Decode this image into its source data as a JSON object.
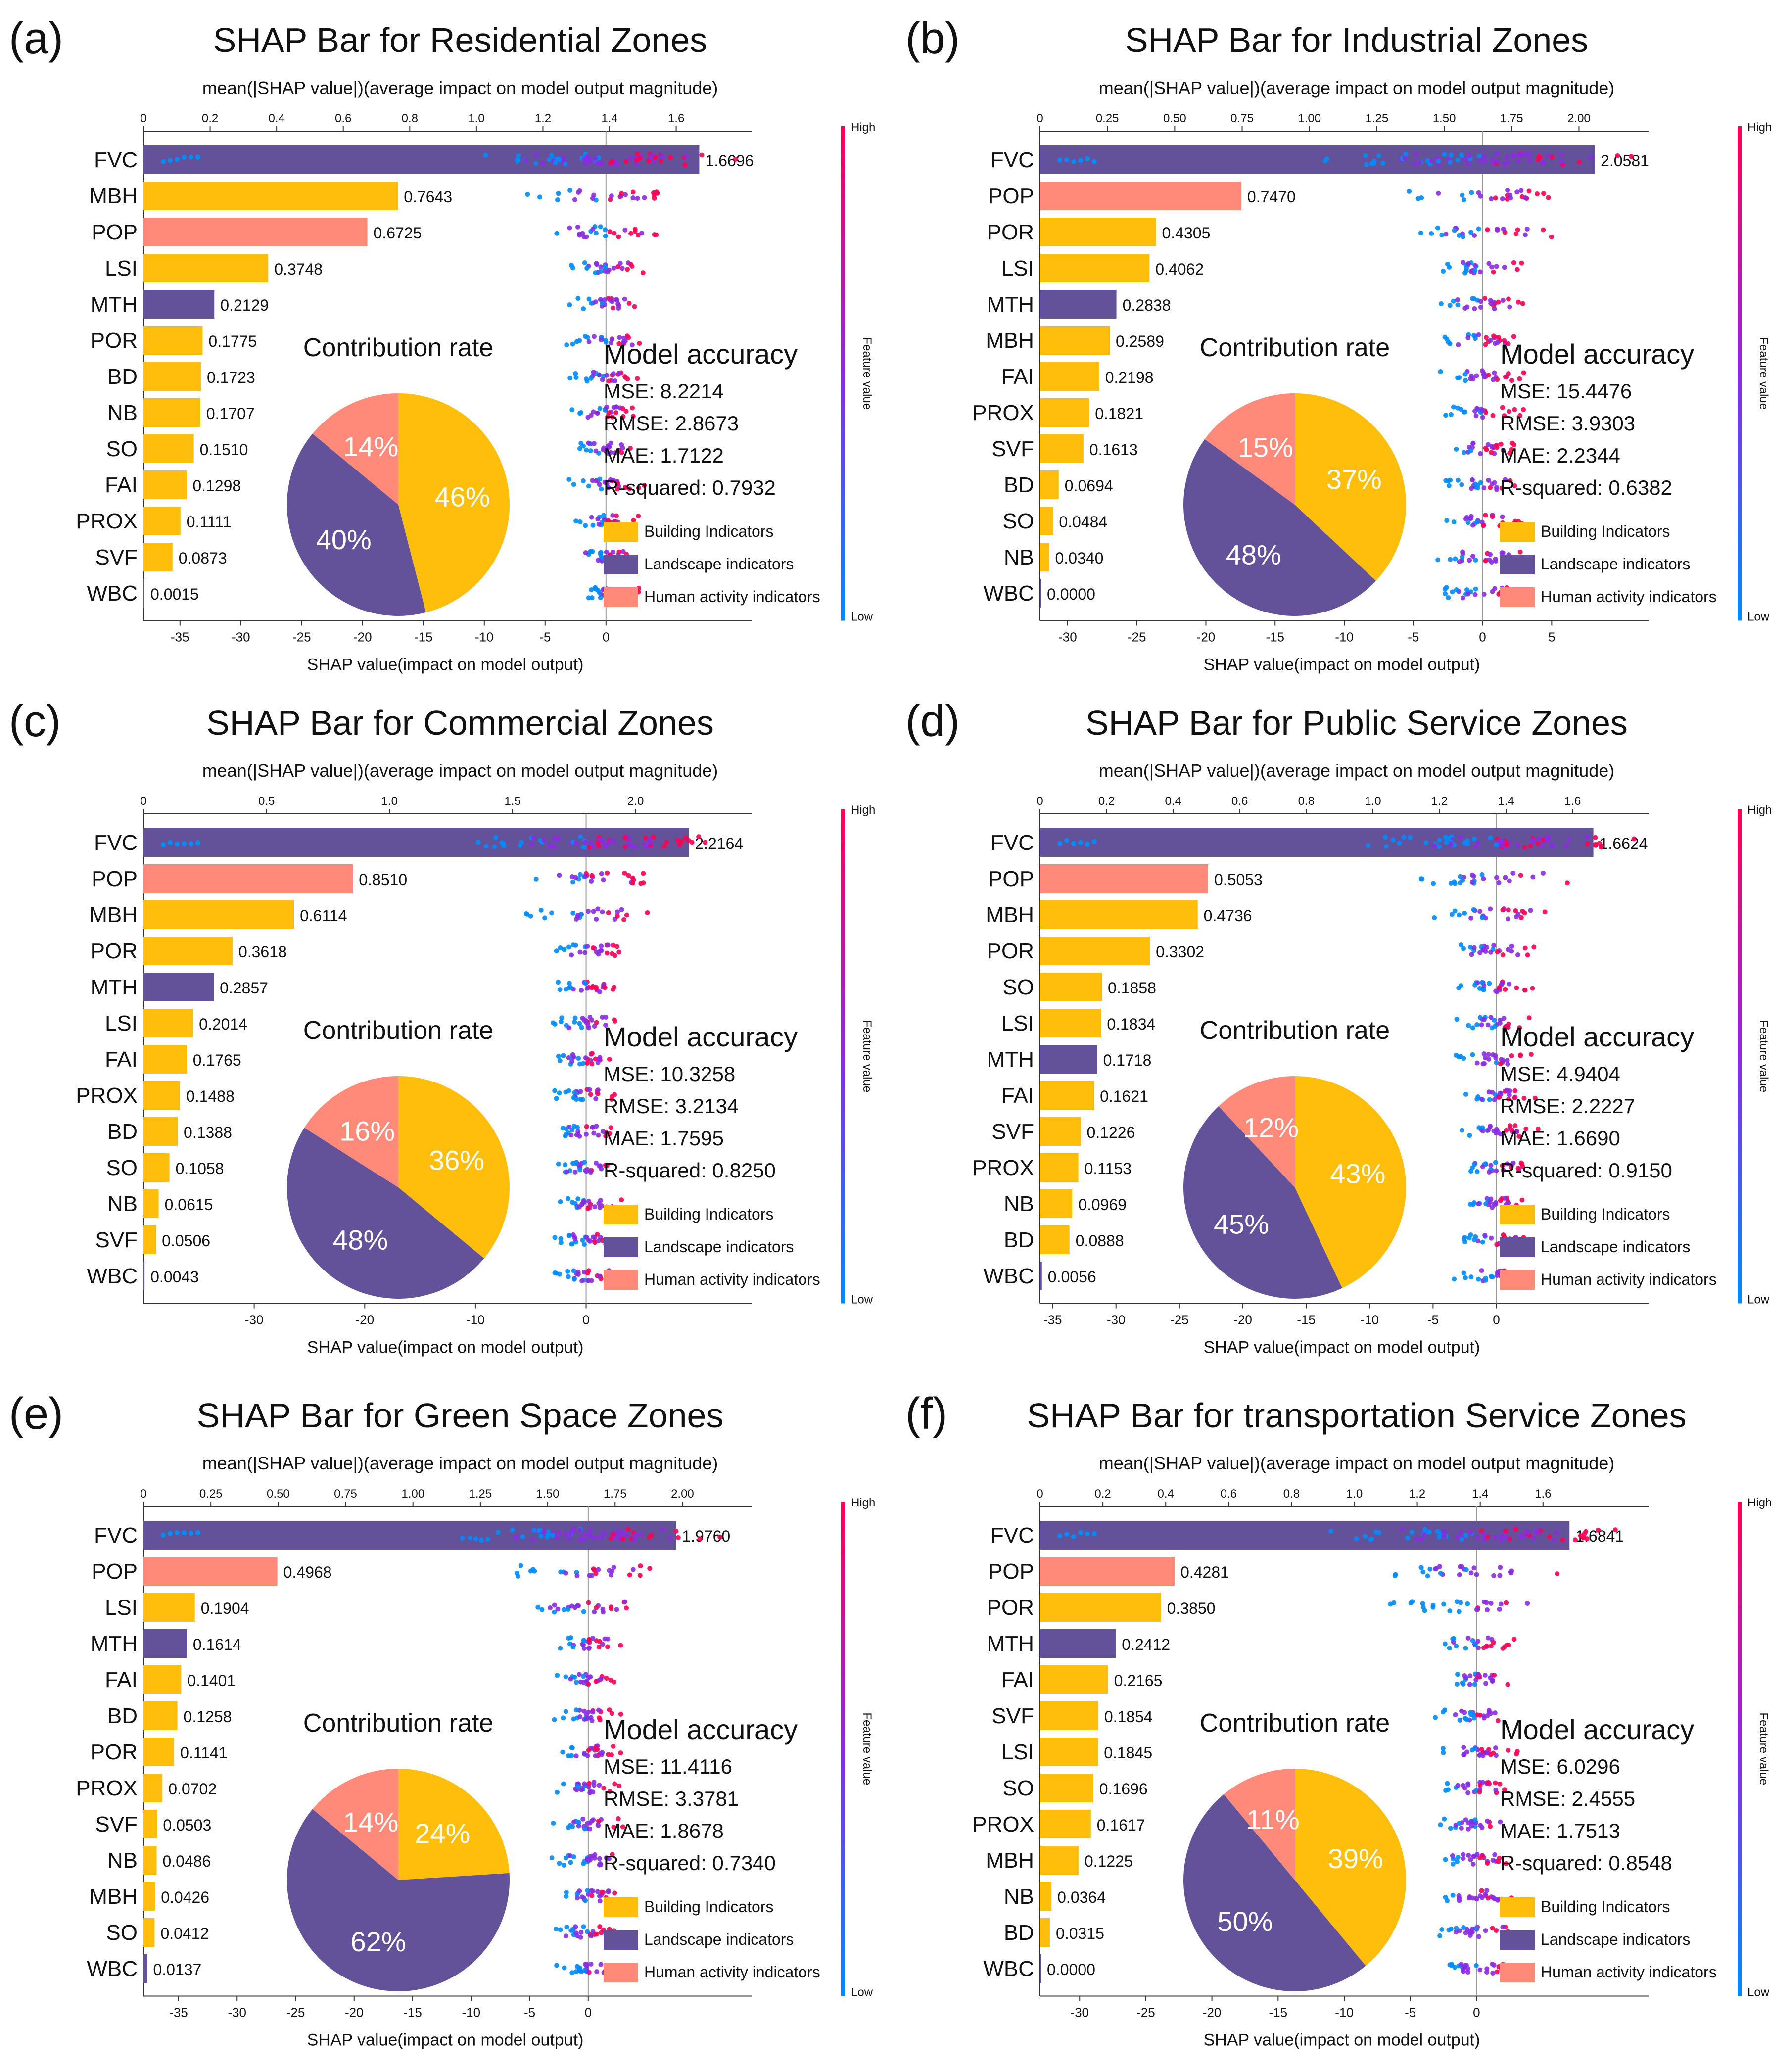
{
  "colors": {
    "building": "#FFBE0B",
    "landscape": "#63529A",
    "human": "#FF8A7A",
    "shap_high": "#FF0052",
    "shap_low": "#008BFB",
    "shap_mid": "#8A2BE2"
  },
  "legend_labels": {
    "building": "Building Indicators",
    "landscape": "Landscape indicators",
    "human": "Human activity indicators"
  },
  "common": {
    "top_axis_label": "mean(|SHAP value|)(average impact on model output magnitude)",
    "bottom_axis_label": "SHAP value(impact on model output)",
    "colorbar_high": "High",
    "colorbar_low": "Low",
    "colorbar_label": "Feature value",
    "contribution_title": "Contribution rate",
    "accuracy_title": "Model accuracy",
    "metric_names": [
      "MSE",
      "RMSE",
      "MAE",
      "R-squared"
    ]
  },
  "chart_data": [
    {
      "type": "bar",
      "panel": "(a)",
      "title": "SHAP Bar for Residential Zones",
      "top_max": 1.7,
      "top_ticks": [
        "0",
        "0.2",
        "0.4",
        "0.6",
        "0.8",
        "1.0",
        "1.2",
        "1.4",
        "1.6"
      ],
      "shap_min": -38,
      "shap_max": 12,
      "shap_ticks": [
        -35,
        -30,
        -25,
        -20,
        -15,
        -10,
        -5,
        0
      ],
      "categories": [
        "FVC",
        "MBH",
        "POP",
        "LSI",
        "MTH",
        "POR",
        "BD",
        "NB",
        "SO",
        "FAI",
        "PROX",
        "SVF",
        "WBC"
      ],
      "values": [
        1.6696,
        0.7643,
        0.6725,
        0.3748,
        0.2129,
        0.1775,
        0.1723,
        0.1707,
        0.151,
        0.1298,
        0.1111,
        0.0873,
        0.0015
      ],
      "labels": [
        "1.6696",
        "0.7643",
        "0.6725",
        "0.3748",
        "0.2129",
        "0.1775",
        "0.1723",
        "0.1707",
        "0.1510",
        "0.1298",
        "0.1111",
        "0.0873",
        "0.0015"
      ],
      "groups": [
        "landscape",
        "building",
        "human",
        "building",
        "landscape",
        "building",
        "building",
        "building",
        "building",
        "building",
        "building",
        "building",
        "landscape"
      ],
      "pie": [
        {
          "group": "building",
          "pct": 46
        },
        {
          "group": "landscape",
          "pct": 40
        },
        {
          "group": "human",
          "pct": 14
        }
      ],
      "metrics": [
        "8.2214",
        "2.8673",
        "1.7122",
        "0.7932"
      ]
    },
    {
      "type": "bar",
      "panel": "(b)",
      "title": "SHAP Bar for Industrial Zones",
      "top_max": 2.1,
      "top_ticks": [
        "0",
        "0.25",
        "0.50",
        "0.75",
        "1.00",
        "1.25",
        "1.50",
        "1.75",
        "2.00"
      ],
      "shap_min": -32,
      "shap_max": 12,
      "shap_ticks": [
        -30,
        -25,
        -20,
        -15,
        -10,
        -5,
        0,
        5
      ],
      "categories": [
        "FVC",
        "POP",
        "POR",
        "LSI",
        "MTH",
        "MBH",
        "FAI",
        "PROX",
        "SVF",
        "BD",
        "SO",
        "NB",
        "WBC"
      ],
      "values": [
        2.0581,
        0.747,
        0.4305,
        0.4062,
        0.2838,
        0.2589,
        0.2198,
        0.1821,
        0.1613,
        0.0694,
        0.0484,
        0.034,
        0.0
      ],
      "labels": [
        "2.0581",
        "0.7470",
        "0.4305",
        "0.4062",
        "0.2838",
        "0.2589",
        "0.2198",
        "0.1821",
        "0.1613",
        "0.0694",
        "0.0484",
        "0.0340",
        "0.0000"
      ],
      "groups": [
        "landscape",
        "human",
        "building",
        "building",
        "landscape",
        "building",
        "building",
        "building",
        "building",
        "building",
        "building",
        "building",
        "landscape"
      ],
      "pie": [
        {
          "group": "building",
          "pct": 37
        },
        {
          "group": "landscape",
          "pct": 48
        },
        {
          "group": "human",
          "pct": 15
        }
      ],
      "metrics": [
        "15.4476",
        "3.9303",
        "2.2344",
        "0.6382"
      ]
    },
    {
      "type": "bar",
      "panel": "(c)",
      "title": "SHAP Bar for Commercial Zones",
      "top_max": 2.3,
      "top_ticks": [
        "0",
        "0.5",
        "1.0",
        "1.5",
        "2.0"
      ],
      "shap_min": -40,
      "shap_max": 15,
      "shap_ticks": [
        -30,
        -20,
        -10,
        0
      ],
      "categories": [
        "FVC",
        "POP",
        "MBH",
        "POR",
        "MTH",
        "LSI",
        "FAI",
        "PROX",
        "BD",
        "SO",
        "NB",
        "SVF",
        "WBC"
      ],
      "values": [
        2.2164,
        0.851,
        0.6114,
        0.3618,
        0.2857,
        0.2014,
        0.1765,
        0.1488,
        0.1388,
        0.1058,
        0.0615,
        0.0506,
        0.0043
      ],
      "labels": [
        "2.2164",
        "0.8510",
        "0.6114",
        "0.3618",
        "0.2857",
        "0.2014",
        "0.1765",
        "0.1488",
        "0.1388",
        "0.1058",
        "0.0615",
        "0.0506",
        "0.0043"
      ],
      "groups": [
        "landscape",
        "human",
        "building",
        "building",
        "landscape",
        "building",
        "building",
        "building",
        "building",
        "building",
        "building",
        "building",
        "landscape"
      ],
      "pie": [
        {
          "group": "building",
          "pct": 36
        },
        {
          "group": "landscape",
          "pct": 48
        },
        {
          "group": "human",
          "pct": 16
        }
      ],
      "metrics": [
        "10.3258",
        "3.2134",
        "1.7595",
        "0.8250"
      ]
    },
    {
      "type": "bar",
      "panel": "(d)",
      "title": "SHAP Bar for Public  Service  Zones",
      "top_max": 1.7,
      "top_ticks": [
        "0",
        "0.2",
        "0.4",
        "0.6",
        "0.8",
        "1.0",
        "1.2",
        "1.4",
        "1.6"
      ],
      "shap_min": -36,
      "shap_max": 12,
      "shap_ticks": [
        -35,
        -30,
        -25,
        -20,
        -15,
        -10,
        -5,
        0
      ],
      "categories": [
        "FVC",
        "POP",
        "MBH",
        "POR",
        "SO",
        "LSI",
        "MTH",
        "FAI",
        "SVF",
        "PROX",
        "NB",
        "BD",
        "WBC"
      ],
      "values": [
        1.6624,
        0.5053,
        0.4736,
        0.3302,
        0.1858,
        0.1834,
        0.1718,
        0.1621,
        0.1226,
        0.1153,
        0.0969,
        0.0888,
        0.0056
      ],
      "labels": [
        "1.6624",
        "0.5053",
        "0.4736",
        "0.3302",
        "0.1858",
        "0.1834",
        "0.1718",
        "0.1621",
        "0.1226",
        "0.1153",
        "0.0969",
        "0.0888",
        "0.0056"
      ],
      "groups": [
        "landscape",
        "human",
        "building",
        "building",
        "building",
        "building",
        "landscape",
        "building",
        "building",
        "building",
        "building",
        "building",
        "landscape"
      ],
      "pie": [
        {
          "group": "building",
          "pct": 43
        },
        {
          "group": "landscape",
          "pct": 45
        },
        {
          "group": "human",
          "pct": 12
        }
      ],
      "metrics": [
        "4.9404",
        "2.2227",
        "1.6690",
        "0.9150"
      ]
    },
    {
      "type": "bar",
      "panel": "(e)",
      "title": "SHAP Bar for Green  Space  Zones",
      "top_max": 2.1,
      "top_ticks": [
        "0",
        "0.25",
        "0.50",
        "0.75",
        "1.00",
        "1.25",
        "1.50",
        "1.75",
        "2.00"
      ],
      "shap_min": -38,
      "shap_max": 14,
      "shap_ticks": [
        -35,
        -30,
        -25,
        -20,
        -15,
        -10,
        -5,
        0
      ],
      "categories": [
        "FVC",
        "POP",
        "LSI",
        "MTH",
        "FAI",
        "BD",
        "POR",
        "PROX",
        "SVF",
        "NB",
        "MBH",
        "SO",
        "WBC"
      ],
      "values": [
        1.976,
        0.4968,
        0.1904,
        0.1614,
        0.1401,
        0.1258,
        0.1141,
        0.0702,
        0.0503,
        0.0486,
        0.0426,
        0.0412,
        0.0137
      ],
      "labels": [
        "1.9760",
        "0.4968",
        "0.1904",
        "0.1614",
        "0.1401",
        "0.1258",
        "0.1141",
        "0.0702",
        "0.0503",
        "0.0486",
        "0.0426",
        "0.0412",
        "0.0137"
      ],
      "groups": [
        "landscape",
        "human",
        "building",
        "landscape",
        "building",
        "building",
        "building",
        "building",
        "building",
        "building",
        "building",
        "building",
        "landscape"
      ],
      "pie": [
        {
          "group": "building",
          "pct": 24
        },
        {
          "group": "landscape",
          "pct": 62
        },
        {
          "group": "human",
          "pct": 14
        }
      ],
      "metrics": [
        "11.4116",
        "3.3781",
        "1.8678",
        "0.7340"
      ]
    },
    {
      "type": "bar",
      "panel": "(f)",
      "title": "SHAP Bar for transportation Service  Zones",
      "top_max": 1.8,
      "top_ticks": [
        "0",
        "0.2",
        "0.4",
        "0.6",
        "0.8",
        "1.0",
        "1.2",
        "1.4",
        "1.6"
      ],
      "shap_min": -33,
      "shap_max": 13,
      "shap_ticks": [
        -30,
        -25,
        -20,
        -15,
        -10,
        -5,
        0
      ],
      "categories": [
        "FVC",
        "POP",
        "POR",
        "MTH",
        "FAI",
        "SVF",
        "LSI",
        "SO",
        "PROX",
        "MBH",
        "NB",
        "BD",
        "WBC"
      ],
      "values": [
        1.6841,
        0.4281,
        0.385,
        0.2412,
        0.2165,
        0.1854,
        0.1845,
        0.1696,
        0.1617,
        0.1225,
        0.0364,
        0.0315,
        0.0
      ],
      "labels": [
        "1.6841",
        "0.4281",
        "0.3850",
        "0.2412",
        "0.2165",
        "0.1854",
        "0.1845",
        "0.1696",
        "0.1617",
        "0.1225",
        "0.0364",
        "0.0315",
        "0.0000"
      ],
      "groups": [
        "landscape",
        "human",
        "building",
        "landscape",
        "building",
        "building",
        "building",
        "building",
        "building",
        "building",
        "building",
        "building",
        "landscape"
      ],
      "pie": [
        {
          "group": "building",
          "pct": 39
        },
        {
          "group": "landscape",
          "pct": 50
        },
        {
          "group": "human",
          "pct": 11
        }
      ],
      "metrics": [
        "6.0296",
        "2.4555",
        "1.7513",
        "0.8548"
      ]
    }
  ]
}
